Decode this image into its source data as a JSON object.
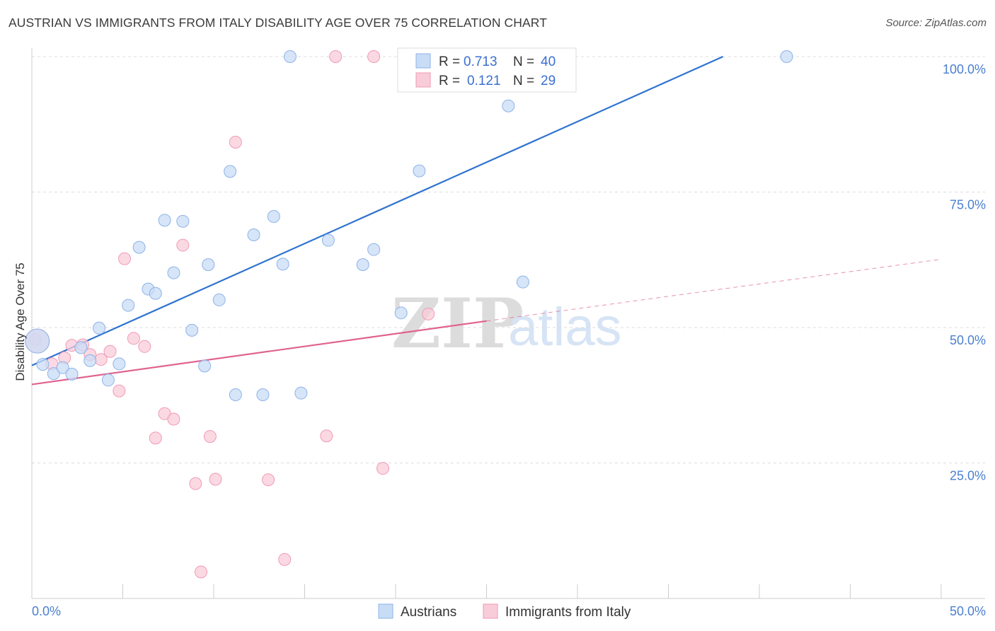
{
  "header": {
    "title": "AUSTRIAN VS IMMIGRANTS FROM ITALY DISABILITY AGE OVER 75 CORRELATION CHART",
    "source": "Source: ZipAtlas.com"
  },
  "watermark": {
    "zip": "ZIP",
    "atlas": "atlas"
  },
  "legend_box": {
    "rows": [
      {
        "r_label": "R =",
        "r_value": "0.713",
        "n_label": "N =",
        "n_value": "40"
      },
      {
        "r_label": "R =",
        "r_value": "0.121",
        "n_label": "N =",
        "n_value": "29"
      }
    ]
  },
  "bottom_legend": {
    "items": [
      "Austrians",
      "Immigrants from Italy"
    ]
  },
  "colors": {
    "austrians_fill": "#c9dcf5",
    "austrians_stroke": "#8db3e8",
    "austrians_line": "#2f73d0",
    "italy_fill": "#f9ccd9",
    "italy_stroke": "#f09ab6",
    "italy_line": "#e0638f",
    "grid": "#dddddd",
    "tick_text": "#4a7fd0"
  },
  "chart_data": {
    "type": "scatter",
    "title": "AUSTRIAN VS IMMIGRANTS FROM ITALY DISABILITY AGE OVER 75 CORRELATION CHART",
    "xlabel": "",
    "ylabel": "Disability Age Over 75",
    "xlim": [
      0,
      50
    ],
    "ylim": [
      3,
      101
    ],
    "x_tick_labels": [
      "0.0%",
      "50.0%"
    ],
    "y_tick_labels": [
      "25.0%",
      "50.0%",
      "75.0%",
      "100.0%"
    ],
    "y_ticks": [
      25,
      50,
      75,
      100
    ],
    "grid": "horizontal dashed",
    "legend_position": "top-center",
    "series": [
      {
        "name": "Austrians",
        "r": 0.713,
        "n": 40,
        "trend": {
          "x": [
            0,
            38
          ],
          "y": [
            43.0,
            100.0
          ]
        },
        "points": [
          [
            0.3,
            47.5
          ],
          [
            0.6,
            43.2
          ],
          [
            1.2,
            41.5
          ],
          [
            1.7,
            42.6
          ],
          [
            2.2,
            41.4
          ],
          [
            2.7,
            46.3
          ],
          [
            3.2,
            43.9
          ],
          [
            3.7,
            49.9
          ],
          [
            4.2,
            40.3
          ],
          [
            4.8,
            43.3
          ],
          [
            5.3,
            54.1
          ],
          [
            5.9,
            64.8
          ],
          [
            6.4,
            57.1
          ],
          [
            6.8,
            56.3
          ],
          [
            7.3,
            69.8
          ],
          [
            7.8,
            60.1
          ],
          [
            8.3,
            69.6
          ],
          [
            8.8,
            49.5
          ],
          [
            9.5,
            42.9
          ],
          [
            9.7,
            61.6
          ],
          [
            10.3,
            55.1
          ],
          [
            10.9,
            78.8
          ],
          [
            11.2,
            37.6
          ],
          [
            12.2,
            67.1
          ],
          [
            12.7,
            37.6
          ],
          [
            13.3,
            70.5
          ],
          [
            13.8,
            61.7
          ],
          [
            14.2,
            100.0
          ],
          [
            14.8,
            37.9
          ],
          [
            16.3,
            66.1
          ],
          [
            18.2,
            61.6
          ],
          [
            18.8,
            64.4
          ],
          [
            20.3,
            52.7
          ],
          [
            21.3,
            78.9
          ],
          [
            22.3,
            100.0
          ],
          [
            24.2,
            100.0
          ],
          [
            26.2,
            90.9
          ],
          [
            26.4,
            100.0
          ],
          [
            27.0,
            58.4
          ],
          [
            41.5,
            100.0
          ]
        ]
      },
      {
        "name": "Immigrants from Italy",
        "r": 0.121,
        "n": 29,
        "trend": {
          "x": [
            0,
            25
          ],
          "y": [
            39.5,
            51.2
          ]
        },
        "trend_dashed_ext": {
          "x": [
            25,
            50
          ],
          "y": [
            51.2,
            62.6
          ]
        },
        "points": [
          [
            0.2,
            47.8
          ],
          [
            1.1,
            43.3
          ],
          [
            1.8,
            44.4
          ],
          [
            2.2,
            46.7
          ],
          [
            2.8,
            46.8
          ],
          [
            3.2,
            45.0
          ],
          [
            3.8,
            44.1
          ],
          [
            4.3,
            45.6
          ],
          [
            4.8,
            38.3
          ],
          [
            5.1,
            62.7
          ],
          [
            5.6,
            48.0
          ],
          [
            6.2,
            46.5
          ],
          [
            6.8,
            29.6
          ],
          [
            7.3,
            34.1
          ],
          [
            7.8,
            33.1
          ],
          [
            8.3,
            65.2
          ],
          [
            9.0,
            21.2
          ],
          [
            9.3,
            4.9
          ],
          [
            9.8,
            29.9
          ],
          [
            10.1,
            22.0
          ],
          [
            11.2,
            84.2
          ],
          [
            13.0,
            21.9
          ],
          [
            13.9,
            7.2
          ],
          [
            16.2,
            30.0
          ],
          [
            16.7,
            100.0
          ],
          [
            19.3,
            24.0
          ],
          [
            18.8,
            100.0
          ],
          [
            21.8,
            52.5
          ],
          [
            0.3,
            47.5
          ]
        ]
      }
    ]
  }
}
